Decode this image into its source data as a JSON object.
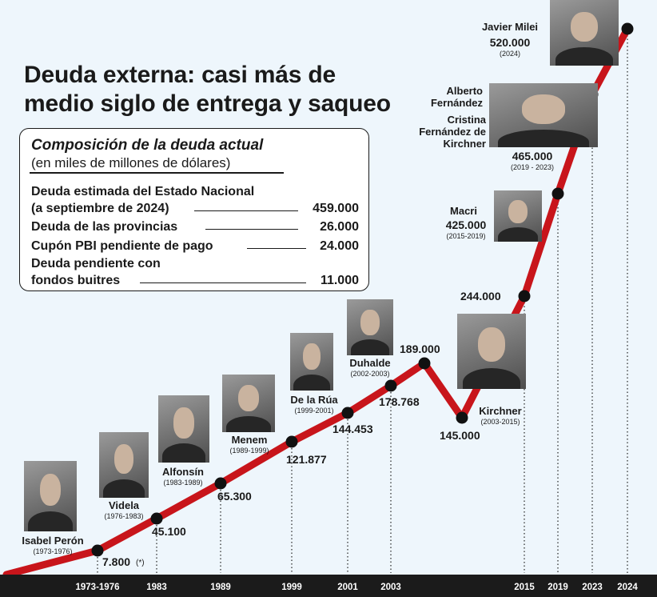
{
  "title": "Deuda externa: casi más de medio siglo de entrega y saqueo",
  "box": {
    "title": "Composición de la deuda actual",
    "subtitle": "(en miles de millones de dólares)",
    "rows": [
      {
        "label": "Deuda estimada del Estado Nacional",
        "label2": "(a septiembre de 2024)",
        "value": "459.000"
      },
      {
        "label": "Deuda de las provincias",
        "value": "26.000"
      },
      {
        "label": "Cupón PBI pendiente de pago",
        "value": "24.000"
      },
      {
        "label": "Deuda pendiente con",
        "label2": "fondos buitres",
        "value": "11.000"
      }
    ]
  },
  "chart_data": {
    "type": "line",
    "x": [
      "1973-1976",
      "1983",
      "1989",
      "1999",
      "2001",
      "2003",
      "2015",
      "2019",
      "2023",
      "2024"
    ],
    "points": [
      {
        "label": "7.800",
        "value": 7800,
        "note": "(*)"
      },
      {
        "label": "45.100",
        "value": 45100
      },
      {
        "label": "65.300",
        "value": 65300
      },
      {
        "label": "121.877",
        "value": 121877
      },
      {
        "label": "144.453",
        "value": 144453
      },
      {
        "label": "178.768",
        "value": 178768
      },
      {
        "label": "189.000",
        "value": 189000
      },
      {
        "label": "145.000",
        "value": 145000
      },
      {
        "label": "244.000",
        "value": 244000
      },
      {
        "label": "425.000",
        "value": 425000
      },
      {
        "label": "465.000",
        "value": 465000
      },
      {
        "label": "520.000",
        "value": 520000
      }
    ],
    "line_color": "#c8151b",
    "presidents": [
      {
        "name": "Isabel Perón",
        "years": "(1973-1976)"
      },
      {
        "name": "Videla",
        "years": "(1976-1983)"
      },
      {
        "name": "Alfonsín",
        "years": "(1983-1989)"
      },
      {
        "name": "Menem",
        "years": "(1989-1999)"
      },
      {
        "name": "De la Rúa",
        "years": "(1999-2001)"
      },
      {
        "name": "Duhalde",
        "years": "(2002-2003)"
      },
      {
        "name": "Kirchner",
        "years": "(2003-2015)"
      },
      {
        "name": "Macri",
        "years": "(2015-2019)"
      },
      {
        "name": "Alberto Fernández",
        "name2": "Cristina Fernández de Kirchner",
        "years": "(2019 - 2023)"
      },
      {
        "name": "Javier Milei",
        "years": "(2024)"
      }
    ]
  }
}
